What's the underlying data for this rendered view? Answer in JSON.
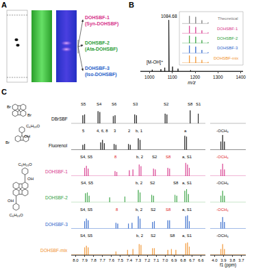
{
  "panel_a": {
    "letter": "A",
    "labels": [
      {
        "name": "DOHSBF-1",
        "alias": "(Syn-DOHSBF)",
        "color": "#d6338a"
      },
      {
        "name": "DOHSBF-2",
        "alias": "(Ata-DOHSBF)",
        "color": "#2e9e3a"
      },
      {
        "name": "DOHSBF-3",
        "alias": "(Iso-DOHSBF)",
        "color": "#2a62c9"
      }
    ]
  },
  "structures": [
    [
      "Br",
      "Br"
    ],
    [
      "C₆H₁₃O",
      "Br",
      "OH"
    ],
    [
      "C₆H₁₃O",
      "C₆H₁₃O",
      "OH",
      "OH"
    ]
  ],
  "chart_data": [
    {
      "letter": "B",
      "type": "line",
      "x_label": "m/z",
      "xlim": [
        960,
        1410
      ],
      "xticks": [
        1000,
        1100,
        1200,
        1300,
        1400
      ],
      "ylim": [
        0,
        1.15
      ],
      "tick_labels": "x",
      "grid": false,
      "color": "#000000",
      "x": [
        1012,
        1050,
        1067,
        1084.68,
        1085.69,
        1086.69,
        1101,
        1125,
        1180
      ],
      "values": [
        0.03,
        0.04,
        0.07,
        1.0,
        0.84,
        0.4,
        0.09,
        0.05,
        0.02
      ],
      "annotations": [
        {
          "text": "1084.68",
          "x": 1084.68,
          "y": 1.0
        },
        {
          "text": "[M-OH]⁺",
          "x": 1022,
          "y": 0.1
        }
      ],
      "inset": {
        "xlim": [
          1083.5,
          1093
        ],
        "xticks": [],
        "ylim": [
          0,
          1.3
        ],
        "tick_labels": false,
        "series": [
          {
            "name": "Theoretical",
            "color": "#777777",
            "x": [
              1084.68,
              1085.69,
              1086.69,
              1087.7
            ],
            "values": [
              1.0,
              0.88,
              0.43,
              0.14
            ]
          },
          {
            "name": "DOHSBF-1",
            "color": "#d6338a",
            "x": [
              1084.68,
              1085.69,
              1086.69,
              1087.7
            ],
            "values": [
              1.0,
              0.84,
              0.4,
              0.12
            ]
          },
          {
            "name": "DOHSBF-2",
            "color": "#2e9e3a",
            "x": [
              1084.68,
              1085.69,
              1086.69,
              1087.7
            ],
            "values": [
              1.0,
              0.86,
              0.41,
              0.13
            ]
          },
          {
            "name": "DOHSBF-3",
            "color": "#2a62c9",
            "x": [
              1084.68,
              1085.69,
              1086.69,
              1087.7
            ],
            "values": [
              1.0,
              0.85,
              0.42,
              0.12
            ]
          },
          {
            "name": "DOHSBF-mix",
            "color": "#f0902a",
            "x": [
              1084.68,
              1085.69,
              1086.69,
              1087.7
            ],
            "values": [
              1.0,
              0.83,
              0.4,
              0.13
            ]
          }
        ]
      }
    },
    {
      "letter": "C",
      "type": "line",
      "x_label": "f1 (ppm)",
      "xlim": [
        8.05,
        6.55
      ],
      "xticks": [
        {
          "value": 8,
          "label": "8.0"
        },
        7.9,
        7.8,
        7.7,
        7.6,
        7.5,
        7.4,
        7.3,
        7.2,
        7.1,
        {
          "value": 7,
          "label": "7.0"
        },
        6.9,
        6.8,
        6.7,
        6.6
      ],
      "x2lim": [
        4.05,
        3.65
      ],
      "x2ticks": [
        {
          "value": 4,
          "label": "4.0"
        },
        3.9,
        3.8,
        3.7
      ],
      "ylim": [
        0,
        1.6
      ],
      "tick_labels": "x",
      "grid": false,
      "series": [
        {
          "name": "DBrSBF",
          "color": "#000000",
          "x": [
            7.92,
            7.9,
            7.75,
            7.73,
            7.58,
            7.56,
            7.34,
            7.32,
            7.0,
            6.98,
            6.72,
            6.63
          ],
          "values": [
            0.5,
            0.55,
            0.75,
            0.7,
            0.45,
            0.5,
            0.55,
            0.5,
            0.6,
            0.55,
            0.8,
            0.6
          ],
          "peak_labels": [
            {
              "text": "S5",
              "x": 7.91
            },
            {
              "text": "S4",
              "x": 7.74
            },
            {
              "text": "S6",
              "x": 7.57
            },
            {
              "text": "S3",
              "x": 7.33
            },
            {
              "text": "S2",
              "x": 6.99
            },
            {
              "text": "S8",
              "x": 6.72
            },
            {
              "text": "S1",
              "x": 6.63
            }
          ]
        },
        {
          "name": "Fluorenol",
          "color": "#000000",
          "x": [
            7.92,
            7.9,
            7.72,
            7.7,
            7.68,
            7.57,
            7.55,
            7.41,
            7.39,
            7.3,
            7.28,
            6.78,
            6.76,
            3.93,
            3.91,
            3.89
          ],
          "values": [
            0.3,
            0.35,
            0.45,
            0.6,
            0.4,
            0.35,
            0.3,
            0.35,
            0.3,
            0.7,
            0.6,
            0.85,
            0.8,
            0.5,
            0.9,
            0.5
          ],
          "peak_labels": [
            {
              "text": "5",
              "x": 7.91
            },
            {
              "text": "4, 6, 8",
              "x": 7.7
            },
            {
              "text": "3",
              "x": 7.56
            },
            {
              "text": "2",
              "x": 7.4
            },
            {
              "text": "b, 1",
              "x": 7.29
            },
            {
              "text": "a",
              "x": 6.77
            },
            {
              "text": "-OCH₃",
              "x": 3.91
            }
          ]
        },
        {
          "name": "DOHSBF-1",
          "color": "#d6338a",
          "x": [
            7.9,
            7.88,
            7.86,
            7.56,
            7.54,
            7.4,
            7.36,
            7.29,
            7.27,
            7.13,
            7.11,
            6.97,
            6.95,
            6.77,
            6.75,
            6.73,
            3.93,
            3.91,
            3.89
          ],
          "values": [
            0.5,
            0.62,
            0.45,
            0.3,
            0.25,
            0.35,
            0.4,
            0.7,
            0.6,
            0.45,
            0.4,
            0.5,
            0.45,
            0.8,
            0.7,
            0.5,
            0.4,
            0.75,
            0.4
          ],
          "peak_labels": [
            {
              "text": "S4, S5",
              "x": 7.88
            },
            {
              "text": "8",
              "x": 7.55,
              "color": "#e0201b"
            },
            {
              "text": "b, 2",
              "x": 7.28
            },
            {
              "text": "S2",
              "x": 7.12
            },
            {
              "text": "S8",
              "x": 6.96,
              "color": "#e0201b"
            },
            {
              "text": "a, S1",
              "x": 6.75
            },
            {
              "text": "-OCH₃",
              "x": 3.91,
              "color": "#e0201b"
            }
          ]
        },
        {
          "name": "DOHSBF-2",
          "color": "#2e9e3a",
          "x": [
            7.89,
            7.87,
            7.85,
            7.62,
            7.45,
            7.3,
            7.28,
            7.15,
            7.13,
            6.89,
            6.87,
            6.78,
            6.76,
            6.74,
            3.93,
            3.91,
            3.89
          ],
          "values": [
            0.55,
            0.6,
            0.4,
            0.3,
            0.35,
            0.75,
            0.6,
            0.45,
            0.4,
            0.45,
            0.4,
            0.7,
            0.8,
            0.5,
            0.4,
            0.7,
            0.4
          ],
          "peak_labels": [
            {
              "text": "S4, S5",
              "x": 7.87
            },
            {
              "text": "b, 2",
              "x": 7.29
            },
            {
              "text": "S2",
              "x": 7.14
            },
            {
              "text": "S8",
              "x": 6.88
            },
            {
              "text": "a, S1",
              "x": 6.75
            },
            {
              "text": "-OCH₃",
              "x": 3.91
            }
          ]
        },
        {
          "name": "DOHSBF-3",
          "color": "#2a62c9",
          "x": [
            7.9,
            7.88,
            7.86,
            7.55,
            7.53,
            7.41,
            7.37,
            7.3,
            7.28,
            7.14,
            7.12,
            6.97,
            6.95,
            6.77,
            6.75,
            6.73,
            3.93,
            3.91,
            3.89
          ],
          "values": [
            0.45,
            0.6,
            0.5,
            0.35,
            0.3,
            0.3,
            0.35,
            0.75,
            0.6,
            0.4,
            0.45,
            0.5,
            0.5,
            0.75,
            0.8,
            0.45,
            0.4,
            0.7,
            0.4
          ],
          "peak_labels": [
            {
              "text": "S4, S5",
              "x": 7.88
            },
            {
              "text": "8",
              "x": 7.54,
              "color": "#e0201b"
            },
            {
              "text": "b, 2",
              "x": 7.29
            },
            {
              "text": "S2",
              "x": 7.13
            },
            {
              "text": "S8",
              "x": 6.96,
              "color": "#e0201b"
            },
            {
              "text": "a, S1",
              "x": 6.75
            },
            {
              "text": "-OCH₃",
              "x": 3.91,
              "color": "#e0201b"
            }
          ]
        },
        {
          "name": "DOHSBF-mix",
          "color": "#f0902a",
          "x": [
            7.9,
            7.88,
            7.86,
            7.55,
            7.42,
            7.36,
            7.29,
            7.27,
            7.14,
            7.12,
            6.97,
            6.93,
            6.88,
            6.77,
            6.75,
            6.73,
            3.93,
            3.91,
            3.89
          ],
          "values": [
            0.45,
            0.55,
            0.45,
            0.2,
            0.3,
            0.35,
            0.65,
            0.6,
            0.4,
            0.4,
            0.3,
            0.35,
            0.3,
            0.7,
            0.75,
            0.5,
            0.35,
            0.65,
            0.35
          ],
          "peak_labels": [
            {
              "text": "S4, S5",
              "x": 7.88
            },
            {
              "text": "b, 2",
              "x": 7.28
            },
            {
              "text": "S2",
              "x": 7.13
            },
            {
              "text": "S8",
              "x": 6.92
            },
            {
              "text": "a, S1",
              "x": 6.75
            },
            {
              "text": "-OCH₃",
              "x": 3.91
            }
          ]
        }
      ]
    }
  ]
}
